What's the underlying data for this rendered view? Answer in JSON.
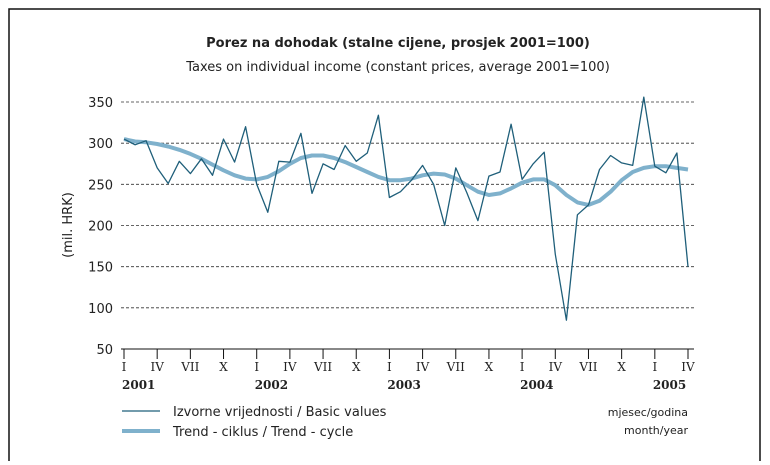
{
  "chart_data": {
    "type": "line",
    "title": "Porez na dohodak (stalne cijene, prosjek 2001=100)",
    "subtitle": "Taxes on individual income (constant prices, average 2001=100)",
    "y_label": "(mil. HRK)",
    "x_label": "mjesec/godina",
    "x_label_en": "month/year",
    "categories": [
      "I",
      null,
      null,
      "IV",
      null,
      null,
      "VII",
      null,
      null,
      "X",
      null,
      null,
      "I",
      null,
      null,
      "IV",
      null,
      null,
      "VII",
      null,
      null,
      "X",
      null,
      null,
      "I",
      null,
      null,
      "IV",
      null,
      null,
      "VII",
      null,
      null,
      "X",
      null,
      null,
      "I",
      null,
      null,
      "IV",
      null,
      null,
      "VII",
      null,
      null,
      "X",
      null,
      null,
      "I",
      null,
      null,
      "IV"
    ],
    "years": [
      "2001",
      "2002",
      "2003",
      "2004",
      "2005"
    ],
    "series": [
      {
        "name": "Izvorne vrijednosti / Basic values",
        "color": "#1f5f7a",
        "values": [
          305,
          298,
          303,
          270,
          251,
          278,
          263,
          281,
          261,
          305,
          277,
          320,
          250,
          216,
          278,
          277,
          312,
          239,
          275,
          268,
          297,
          278,
          288,
          334,
          234,
          241,
          255,
          273,
          250,
          200,
          270,
          240,
          206,
          260,
          265,
          323,
          256,
          275,
          289,
          165,
          85,
          213,
          225,
          268,
          285,
          276,
          273,
          356,
          272,
          264,
          288,
          150
        ]
      },
      {
        "name": "Trend - ciklus / Trend - cycle",
        "color": "#7fb1cc",
        "values": [
          305,
          302,
          301,
          299,
          296,
          292,
          287,
          281,
          274,
          267,
          261,
          257,
          256,
          259,
          266,
          275,
          282,
          285,
          285,
          282,
          277,
          271,
          265,
          259,
          255,
          255,
          257,
          261,
          263,
          262,
          257,
          249,
          241,
          237,
          239,
          245,
          252,
          256,
          256,
          249,
          237,
          228,
          225,
          230,
          241,
          255,
          265,
          270,
          272,
          272,
          270,
          268
        ]
      }
    ],
    "ylim": [
      50,
      350
    ],
    "yticks": [
      50,
      100,
      150,
      200,
      250,
      300,
      350
    ],
    "grid": true
  }
}
